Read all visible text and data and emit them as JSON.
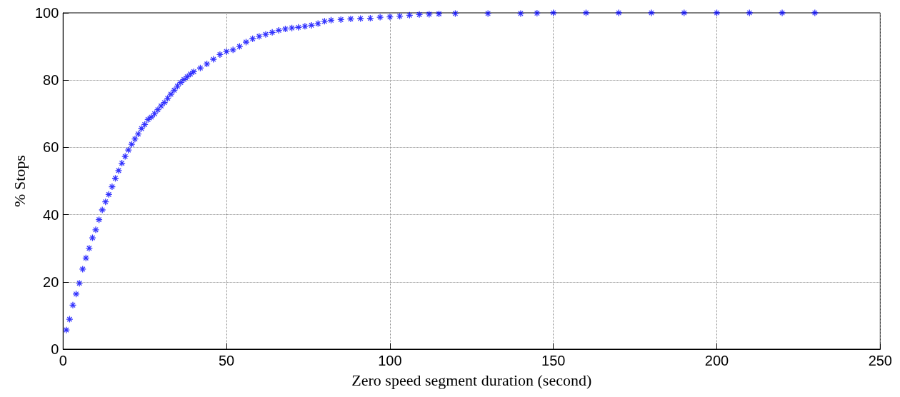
{
  "chart_data": {
    "type": "scatter",
    "xlabel": "Zero speed segment duration (second)",
    "ylabel": "% Stops",
    "x": [
      1,
      2,
      3,
      4,
      5,
      6,
      7,
      8,
      9,
      10,
      11,
      12,
      13,
      14,
      15,
      16,
      17,
      18,
      19,
      20,
      21,
      22,
      23,
      24,
      25,
      26,
      27,
      28,
      29,
      30,
      31,
      32,
      33,
      34,
      35,
      36,
      37,
      38,
      39,
      40,
      42,
      44,
      46,
      48,
      50,
      52,
      54,
      56,
      58,
      60,
      62,
      64,
      66,
      68,
      70,
      72,
      74,
      76,
      78,
      80,
      82,
      85,
      88,
      91,
      94,
      97,
      100,
      103,
      106,
      109,
      112,
      115,
      120,
      130,
      140,
      145,
      150,
      160,
      170,
      180,
      190,
      200,
      210,
      220,
      230
    ],
    "series": [
      {
        "color": "#0000ff",
        "values": [
          5.7,
          8.9,
          13.1,
          16.4,
          19.6,
          23.8,
          27.1,
          30.0,
          33.1,
          35.5,
          38.5,
          41.4,
          43.8,
          46.0,
          48.3,
          50.8,
          53.1,
          55.3,
          57.3,
          59.2,
          60.9,
          62.5,
          64.0,
          65.6,
          66.8,
          68.3,
          69.0,
          70.0,
          71.2,
          72.3,
          73.3,
          74.6,
          75.8,
          77.0,
          78.2,
          79.3,
          80.2,
          81.0,
          81.8,
          82.5,
          83.6,
          84.8,
          86.2,
          87.6,
          88.5,
          89.0,
          90.0,
          91.3,
          92.3,
          93.0,
          93.6,
          94.2,
          94.8,
          95.2,
          95.5,
          95.7,
          96.0,
          96.3,
          96.8,
          97.5,
          97.8,
          98.0,
          98.2,
          98.3,
          98.4,
          98.7,
          98.8,
          99.0,
          99.3,
          99.5,
          99.6,
          99.7,
          99.8,
          99.8,
          99.8,
          99.9,
          100,
          100,
          100,
          100,
          100,
          100,
          100,
          100,
          100
        ]
      }
    ],
    "xlim": [
      0,
      250
    ],
    "xticks": [
      0,
      50,
      100,
      150,
      200,
      250
    ],
    "ylim": [
      0,
      100
    ],
    "yticks": [
      0,
      20,
      40,
      60,
      80,
      100
    ],
    "grid": true,
    "marker": "cross"
  }
}
